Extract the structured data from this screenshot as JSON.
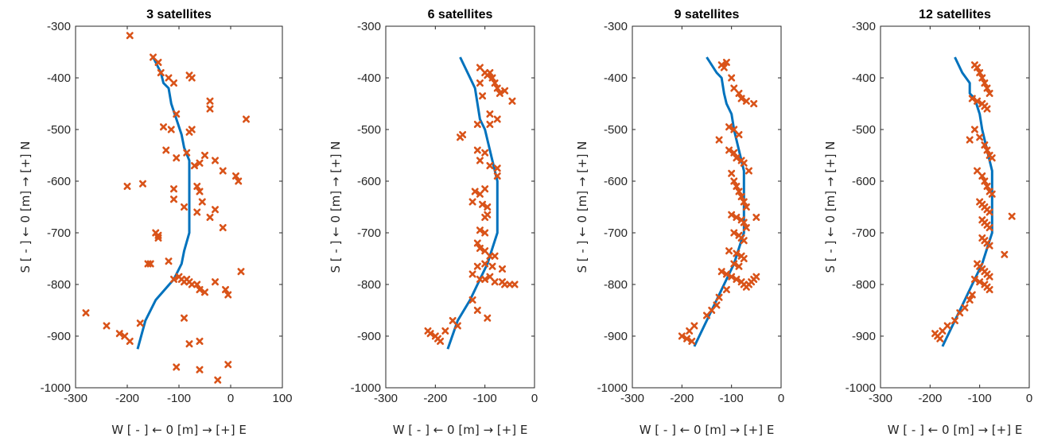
{
  "chart_data": [
    {
      "type": "scatter",
      "title": "3 satellites",
      "xlabel": "W [ - ] ← 0 [m] → [+] E",
      "ylabel": "S [ - ] ← 0 [m] → [+] N",
      "xlim": [
        -300,
        100
      ],
      "ylim": [
        -1000,
        -300
      ],
      "xticks": [
        "-300",
        "-200",
        "-100",
        "0",
        "100"
      ],
      "yticks": [
        "-300",
        "-400",
        "-500",
        "-600",
        "-700",
        "-800",
        "-900",
        "-1000"
      ],
      "grid": false,
      "colors": {
        "path": "#0072BD",
        "points": "#D95319"
      },
      "path": {
        "x": [
          -150,
          -135,
          -130,
          -120,
          -115,
          -105,
          -95,
          -90,
          -80,
          -80,
          -80,
          -80,
          -90,
          -95,
          -110,
          -145,
          -165,
          -180
        ],
        "y": [
          -360,
          -390,
          -410,
          -420,
          -450,
          -480,
          -510,
          -535,
          -560,
          -620,
          -680,
          -700,
          -735,
          -760,
          -790,
          -830,
          -870,
          -925
        ]
      },
      "points": {
        "x": [
          -195,
          -150,
          -140,
          -135,
          -120,
          -110,
          -80,
          -75,
          -40,
          -40,
          -105,
          -75,
          30,
          -130,
          -115,
          -80,
          -125,
          -105,
          -85,
          -50,
          -30,
          -60,
          -70,
          10,
          -200,
          -170,
          -65,
          -110,
          -60,
          -15,
          15,
          -110,
          -55,
          -90,
          -30,
          -65,
          -40,
          -15,
          -145,
          -140,
          -140,
          -160,
          -155,
          -120,
          -100,
          -110,
          -95,
          -90,
          -85,
          -80,
          -75,
          -65,
          20,
          -30,
          -60,
          -50,
          -10,
          -5,
          -280,
          -240,
          -215,
          -205,
          -195,
          -175,
          -90,
          -80,
          -60,
          -105,
          -60,
          -5,
          -25
        ],
        "y": [
          -318,
          -360,
          -370,
          -390,
          -400,
          -410,
          -395,
          -400,
          -445,
          -460,
          -470,
          -500,
          -480,
          -495,
          -500,
          -505,
          -540,
          -555,
          -545,
          -550,
          -560,
          -565,
          -570,
          -590,
          -610,
          -605,
          -610,
          -615,
          -620,
          -580,
          -600,
          -635,
          -640,
          -650,
          -655,
          -660,
          -670,
          -690,
          -700,
          -705,
          -710,
          -760,
          -760,
          -755,
          -785,
          -790,
          -790,
          -795,
          -790,
          -795,
          -800,
          -800,
          -775,
          -795,
          -810,
          -815,
          -810,
          -820,
          -855,
          -880,
          -895,
          -900,
          -910,
          -875,
          -865,
          -915,
          -910,
          -960,
          -965,
          -955,
          -985
        ]
      }
    },
    {
      "type": "scatter",
      "title": "6 satellites",
      "xlabel": "W [ - ] ← 0 [m] → [+] E",
      "ylabel": "S [ - ] ← 0 [m] → [+] N",
      "xlim": [
        -300,
        0
      ],
      "ylim": [
        -1000,
        -300
      ],
      "xticks": [
        "-300",
        "-200",
        "-100",
        "0"
      ],
      "yticks": [
        "-300",
        "-400",
        "-500",
        "-600",
        "-700",
        "-800",
        "-900",
        "-1000"
      ],
      "grid": false,
      "colors": {
        "path": "#0072BD",
        "points": "#D95319"
      },
      "path": {
        "x": [
          -150,
          -130,
          -120,
          -115,
          -110,
          -100,
          -95,
          -90,
          -85,
          -75,
          -75,
          -75,
          -75,
          -85,
          -95,
          -110,
          -130,
          -155,
          -175
        ],
        "y": [
          -360,
          -400,
          -420,
          -450,
          -480,
          -500,
          -520,
          -540,
          -560,
          -600,
          -640,
          -680,
          -700,
          -730,
          -760,
          -790,
          -830,
          -870,
          -925
        ]
      },
      "points": {
        "x": [
          -110,
          -100,
          -95,
          -90,
          -85,
          -80,
          -75,
          -70,
          -60,
          -45,
          -105,
          -110,
          -90,
          -90,
          -75,
          -115,
          -145,
          -150,
          -115,
          -100,
          -75,
          -110,
          -90,
          -75,
          -120,
          -110,
          -100,
          -125,
          -105,
          -95,
          -95,
          -100,
          -100,
          -110,
          -115,
          -100,
          -110,
          -90,
          -80,
          -100,
          -85,
          -65,
          -115,
          -125,
          -110,
          -90,
          -100,
          -80,
          -65,
          -60,
          -50,
          -40,
          -125,
          -115,
          -95,
          -155,
          -165,
          -180,
          -215,
          -210,
          -200,
          -195,
          -190
        ],
        "y": [
          -380,
          -390,
          -395,
          -390,
          -400,
          -410,
          -420,
          -430,
          -425,
          -445,
          -435,
          -410,
          -470,
          -490,
          -480,
          -490,
          -510,
          -515,
          -540,
          -545,
          -575,
          -560,
          -570,
          -590,
          -620,
          -625,
          -615,
          -640,
          -645,
          -650,
          -665,
          -670,
          -700,
          -695,
          -720,
          -735,
          -730,
          -745,
          -745,
          -760,
          -765,
          -770,
          -765,
          -780,
          -790,
          -785,
          -790,
          -795,
          -795,
          -800,
          -800,
          -800,
          -830,
          -850,
          -865,
          -880,
          -870,
          -890,
          -890,
          -895,
          -900,
          -905,
          -910
        ]
      }
    },
    {
      "type": "scatter",
      "title": "9 satellites",
      "xlabel": "W [ - ] ← 0 [m] → [+] E",
      "ylabel": "S [ - ] ← 0 [m] → [+] N",
      "xlim": [
        -300,
        0
      ],
      "ylim": [
        -1000,
        -300
      ],
      "xticks": [
        "-300",
        "-200",
        "-100",
        "0"
      ],
      "yticks": [
        "-300",
        "-400",
        "-500",
        "-600",
        "-700",
        "-800",
        "-900",
        "-1000"
      ],
      "grid": false,
      "colors": {
        "path": "#0072BD",
        "points": "#D95319"
      },
      "path": {
        "x": [
          -150,
          -130,
          -120,
          -115,
          -110,
          -100,
          -95,
          -90,
          -85,
          -75,
          -75,
          -75,
          -75,
          -85,
          -95,
          -110,
          -130,
          -150,
          -175
        ],
        "y": [
          -360,
          -390,
          -400,
          -430,
          -450,
          -470,
          -500,
          -520,
          -540,
          -580,
          -620,
          -660,
          -700,
          -730,
          -760,
          -790,
          -830,
          -870,
          -920
        ]
      },
      "points": {
        "x": [
          -120,
          -115,
          -110,
          -100,
          -95,
          -85,
          -80,
          -70,
          -55,
          -105,
          -95,
          -85,
          -125,
          -105,
          -95,
          -90,
          -80,
          -75,
          -65,
          -100,
          -95,
          -90,
          -85,
          -80,
          -75,
          -70,
          -100,
          -90,
          -80,
          -75,
          -70,
          -95,
          -85,
          -80,
          -75,
          -50,
          -105,
          -90,
          -80,
          -75,
          -95,
          -85,
          -120,
          -110,
          -100,
          -90,
          -80,
          -75,
          -70,
          -65,
          -60,
          -55,
          -50,
          -110,
          -125,
          -130,
          -140,
          -150,
          -175,
          -185,
          -200,
          -190,
          -180
        ],
        "y": [
          -375,
          -380,
          -370,
          -400,
          -420,
          -430,
          -440,
          -445,
          -450,
          -495,
          -500,
          -510,
          -520,
          -540,
          -545,
          -555,
          -560,
          -565,
          -580,
          -585,
          -600,
          -610,
          -620,
          -630,
          -640,
          -650,
          -665,
          -670,
          -675,
          -680,
          -690,
          -700,
          -705,
          -710,
          -715,
          -670,
          -735,
          -740,
          -745,
          -750,
          -760,
          -765,
          -775,
          -780,
          -785,
          -790,
          -795,
          -800,
          -805,
          -800,
          -795,
          -790,
          -785,
          -810,
          -825,
          -840,
          -850,
          -860,
          -880,
          -890,
          -900,
          -905,
          -910
        ]
      }
    },
    {
      "type": "scatter",
      "title": "12 satellites",
      "xlabel": "W [ - ] ← 0 [m] → [+] E",
      "ylabel": "S [ - ] ← 0 [m] → [+] N",
      "xlim": [
        -300,
        0
      ],
      "ylim": [
        -1000,
        -300
      ],
      "xticks": [
        "-300",
        "-200",
        "-100",
        "0"
      ],
      "yticks": [
        "-300",
        "-400",
        "-500",
        "-600",
        "-700",
        "-800",
        "-900",
        "-1000"
      ],
      "grid": false,
      "colors": {
        "path": "#0072BD",
        "points": "#D95319"
      },
      "path": {
        "x": [
          -150,
          -135,
          -120,
          -120,
          -110,
          -100,
          -95,
          -90,
          -85,
          -75,
          -75,
          -75,
          -75,
          -85,
          -95,
          -110,
          -130,
          -150,
          -175
        ],
        "y": [
          -360,
          -390,
          -410,
          -430,
          -440,
          -470,
          -500,
          -520,
          -540,
          -580,
          -620,
          -660,
          -700,
          -730,
          -760,
          -790,
          -830,
          -870,
          -920
        ]
      },
      "points": {
        "x": [
          -110,
          -105,
          -100,
          -95,
          -90,
          -85,
          -80,
          -115,
          -105,
          -95,
          -90,
          -85,
          -120,
          -110,
          -100,
          -90,
          -85,
          -80,
          -75,
          -105,
          -95,
          -90,
          -85,
          -80,
          -75,
          -100,
          -95,
          -90,
          -85,
          -80,
          -35,
          -95,
          -90,
          -85,
          -80,
          -95,
          -90,
          -85,
          -80,
          -50,
          -105,
          -100,
          -95,
          -90,
          -85,
          -80,
          -110,
          -100,
          -90,
          -85,
          -80,
          -115,
          -120,
          -130,
          -140,
          -150,
          -165,
          -175,
          -185,
          -190,
          -180
        ],
        "y": [
          -375,
          -380,
          -390,
          -400,
          -410,
          -420,
          -430,
          -440,
          -445,
          -450,
          -455,
          -460,
          -520,
          -500,
          -515,
          -530,
          -540,
          -550,
          -555,
          -580,
          -590,
          -600,
          -610,
          -620,
          -625,
          -640,
          -645,
          -650,
          -655,
          -660,
          -668,
          -675,
          -680,
          -685,
          -690,
          -710,
          -715,
          -720,
          -725,
          -742,
          -760,
          -765,
          -770,
          -775,
          -780,
          -785,
          -790,
          -795,
          -800,
          -805,
          -810,
          -820,
          -830,
          -845,
          -855,
          -870,
          -880,
          -890,
          -900,
          -895,
          -905
        ]
      }
    }
  ]
}
